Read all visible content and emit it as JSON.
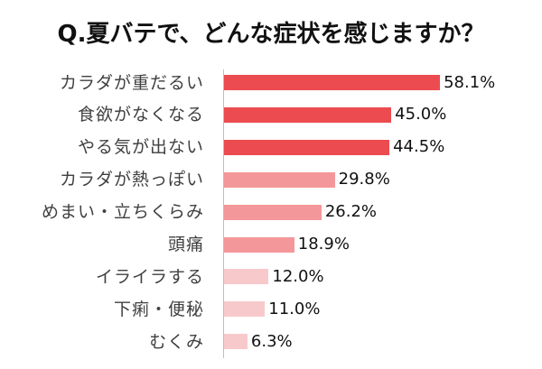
{
  "chart_data": {
    "type": "bar",
    "orientation": "horizontal",
    "title": "Q.夏バテで、どんな症状を感じますか？",
    "categories": [
      "カラダが重だるい",
      "食欲がなくなる",
      "やる気が出ない",
      "カラダが熱っぽい",
      "めまい・立ちくらみ",
      "頭痛",
      "イライラする",
      "下痢・便秘",
      "むくみ"
    ],
    "values": [
      58.1,
      45.0,
      44.5,
      29.8,
      26.2,
      18.9,
      12.0,
      11.0,
      6.3
    ],
    "value_labels": [
      "58.1%",
      "45.0%",
      "44.5%",
      "29.8%",
      "26.2%",
      "18.9%",
      "12.0%",
      "11.0%",
      "6.3%"
    ],
    "colors": [
      "#ec4b50",
      "#ec4b50",
      "#ec4b50",
      "#f4979a",
      "#f4979a",
      "#f4979a",
      "#f8c9cb",
      "#f8c9cb",
      "#f8c9cb"
    ],
    "grid": false
  }
}
